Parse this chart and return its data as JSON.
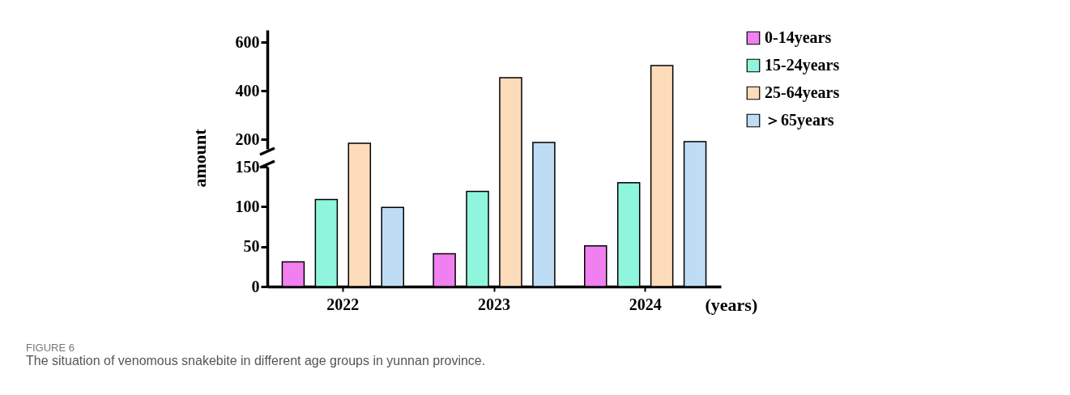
{
  "chart_data": [
    {
      "type": "bar",
      "categories": [
        "2022",
        "2023",
        "2024"
      ],
      "series": [
        {
          "name": "0-14years",
          "color": "#f080f0",
          "values": [
            null,
            null,
            null
          ]
        },
        {
          "name": "15-24years",
          "color": "#8ff5dc",
          "values": [
            null,
            null,
            null
          ]
        },
        {
          "name": "25-64years",
          "color": "#fddcbb",
          "values": [
            183,
            453,
            503
          ]
        },
        {
          "name": "＞65years",
          "color": "#bfdcf5",
          "values": [
            null,
            187,
            190
          ]
        }
      ],
      "ylabel": "amount",
      "ylim": [
        160,
        650
      ],
      "yticks": [
        200,
        400,
        600
      ],
      "legend": "top right",
      "tick_labels": "y"
    },
    {
      "type": "bar",
      "categories": [
        "2022",
        "2023",
        "2024"
      ],
      "series": [
        {
          "color": "#f080f0",
          "values": [
            31,
            41,
            51
          ]
        },
        {
          "color": "#8ff5dc",
          "values": [
            109,
            119,
            130
          ]
        },
        {
          "color": "#fddcbb",
          "values": [
            null,
            null,
            null
          ]
        },
        {
          "color": "#bfdcf5",
          "values": [
            99,
            null,
            null
          ]
        }
      ],
      "xlabel": "(years)",
      "ylim": [
        0,
        150
      ],
      "yticks": [
        0,
        50,
        100,
        150
      ],
      "annotations": [
        "FIGURE 6",
        "The situation of venomous snakebite in different age groups in yunnan province."
      ]
    }
  ]
}
